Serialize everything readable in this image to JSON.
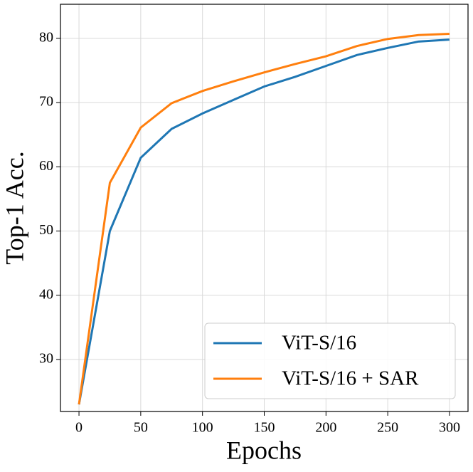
{
  "chart_data": {
    "type": "line",
    "x_label": "Epochs",
    "y_label": "Top-1 Acc.",
    "x": [
      0,
      25,
      50,
      75,
      100,
      125,
      150,
      175,
      200,
      225,
      250,
      275,
      300
    ],
    "series": [
      {
        "name": "ViT-S/16",
        "color": "#1f77b4",
        "values": [
          23,
          50,
          61.4,
          65.9,
          68.3,
          70.4,
          72.5,
          74,
          75.7,
          77.4,
          78.5,
          79.5,
          79.8
        ]
      },
      {
        "name": "ViT-S/16 + SAR",
        "color": "#ff7f0e",
        "values": [
          23,
          57.5,
          66.1,
          69.9,
          71.8,
          73.3,
          74.7,
          76,
          77.2,
          78.8,
          79.9,
          80.5,
          80.7
        ]
      }
    ],
    "xlim": [
      -15,
      315
    ],
    "ylim": [
      21.9,
      85.3
    ],
    "xticks": [
      0,
      50,
      100,
      150,
      200,
      250,
      300
    ],
    "yticks": [
      30,
      40,
      50,
      60,
      70,
      80
    ],
    "grid": true,
    "legend": "lower right"
  }
}
